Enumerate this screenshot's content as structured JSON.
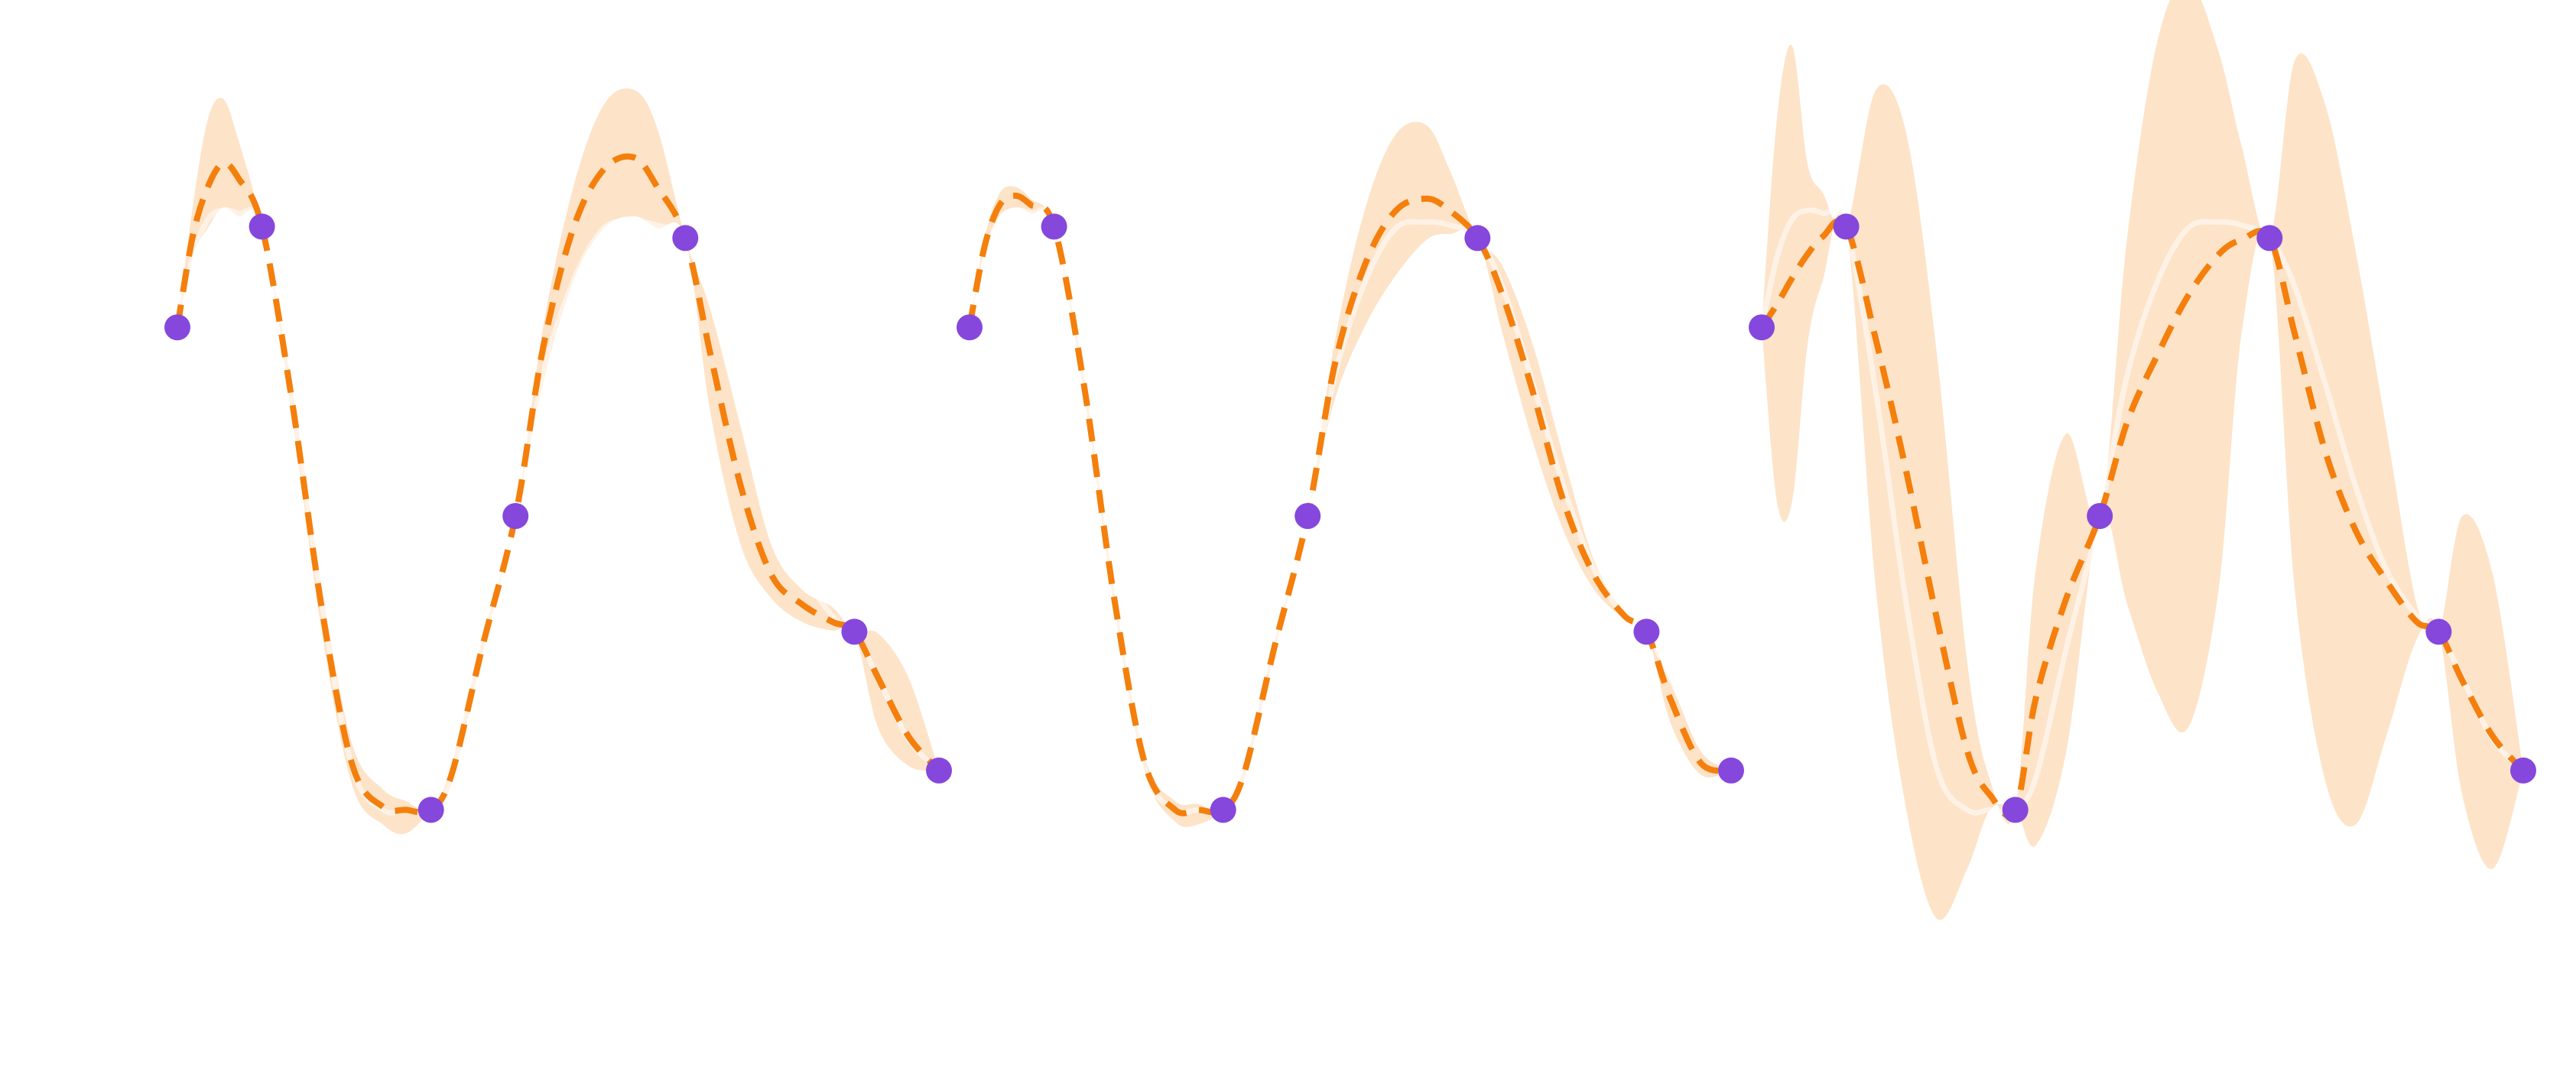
{
  "chart_data": [
    {
      "type": "line",
      "title": "",
      "xlabel": "",
      "ylabel": "",
      "xlim": [
        0,
        1
      ],
      "ylim": [
        -1.6,
        1.6
      ],
      "grid": false,
      "axes_visible": false,
      "colors": {
        "band": "#fde3c8",
        "mean": "#f47f0c",
        "truth": "#ffffff",
        "points": "#8547dc"
      },
      "observations": {
        "x": [
          0.0,
          0.111,
          0.333,
          0.444,
          0.667,
          0.889,
          1.0
        ],
        "y": [
          0.642,
          0.985,
          -1.0,
          0.0,
          0.946,
          -0.394,
          -0.866
        ]
      },
      "mean": {
        "x": [
          0.0,
          0.02,
          0.04,
          0.06,
          0.08,
          0.111,
          0.15,
          0.19,
          0.23,
          0.27,
          0.3,
          0.333,
          0.36,
          0.4,
          0.444,
          0.48,
          0.52,
          0.56,
          0.6,
          0.63,
          0.667,
          0.7,
          0.74,
          0.78,
          0.82,
          0.86,
          0.889,
          0.92,
          0.96,
          1.0
        ],
        "y": [
          0.642,
          0.95,
          1.12,
          1.2,
          1.15,
          0.985,
          0.4,
          -0.32,
          -0.85,
          -0.99,
          -1.0,
          -1.0,
          -0.88,
          -0.45,
          0.0,
          0.57,
          0.98,
          1.18,
          1.22,
          1.12,
          0.946,
          0.55,
          0.1,
          -0.2,
          -0.3,
          -0.36,
          -0.394,
          -0.55,
          -0.75,
          -0.866
        ]
      },
      "band": {
        "x": [
          0.0,
          0.02,
          0.04,
          0.06,
          0.08,
          0.111,
          0.15,
          0.19,
          0.23,
          0.27,
          0.3,
          0.333,
          0.36,
          0.4,
          0.444,
          0.48,
          0.52,
          0.56,
          0.6,
          0.63,
          0.667,
          0.7,
          0.74,
          0.78,
          0.82,
          0.86,
          0.889,
          0.92,
          0.96,
          1.0
        ],
        "upper": [
          0.642,
          1.05,
          1.35,
          1.42,
          1.28,
          0.985,
          0.45,
          -0.25,
          -0.78,
          -0.93,
          -0.97,
          -1.0,
          -0.85,
          -0.42,
          0.0,
          0.64,
          1.12,
          1.4,
          1.45,
          1.32,
          0.946,
          0.7,
          0.3,
          -0.1,
          -0.25,
          -0.31,
          -0.394,
          -0.4,
          -0.55,
          -0.866
        ],
        "lower": [
          0.642,
          0.88,
          0.98,
          1.05,
          1.02,
          0.985,
          0.35,
          -0.4,
          -0.92,
          -1.05,
          -1.08,
          -1.0,
          -0.91,
          -0.48,
          0.0,
          0.45,
          0.8,
          0.98,
          1.02,
          0.98,
          0.946,
          0.35,
          -0.1,
          -0.28,
          -0.36,
          -0.39,
          -0.394,
          -0.72,
          -0.85,
          -0.866
        ]
      },
      "truth": {
        "x": [
          0.0,
          0.02,
          0.04,
          0.06,
          0.08,
          0.111,
          0.15,
          0.19,
          0.23,
          0.27,
          0.3,
          0.333,
          0.36,
          0.4,
          0.444,
          0.48,
          0.52,
          0.56,
          0.6,
          0.63,
          0.667,
          0.7,
          0.74,
          0.78,
          0.82,
          0.86,
          0.889,
          0.92,
          0.96,
          1.0
        ],
        "y": [
          0.642,
          0.88,
          1.01,
          1.04,
          1.03,
          0.985,
          0.42,
          -0.3,
          -0.86,
          -1.0,
          -1.0,
          -1.0,
          -0.89,
          -0.45,
          0.0,
          0.48,
          0.8,
          0.98,
          1.0,
          0.99,
          0.946,
          0.78,
          0.45,
          0.1,
          -0.18,
          -0.34,
          -0.394,
          -0.55,
          -0.76,
          -0.866
        ]
      }
    },
    {
      "type": "line",
      "title": "",
      "xlabel": "",
      "ylabel": "",
      "xlim": [
        0,
        1
      ],
      "ylim": [
        -1.6,
        1.6
      ],
      "grid": false,
      "axes_visible": false,
      "colors": {
        "band": "#fde3c8",
        "mean": "#f47f0c",
        "truth": "#ffffff",
        "points": "#8547dc"
      },
      "observations": {
        "x": [
          0.0,
          0.111,
          0.333,
          0.444,
          0.667,
          0.889,
          1.0
        ],
        "y": [
          0.642,
          0.985,
          -1.0,
          0.0,
          0.946,
          -0.394,
          -0.866
        ]
      },
      "mean": {
        "x": [
          0.0,
          0.02,
          0.04,
          0.06,
          0.08,
          0.111,
          0.15,
          0.19,
          0.23,
          0.27,
          0.3,
          0.333,
          0.36,
          0.4,
          0.444,
          0.48,
          0.52,
          0.56,
          0.6,
          0.63,
          0.667,
          0.7,
          0.74,
          0.78,
          0.82,
          0.86,
          0.889,
          0.92,
          0.96,
          1.0
        ],
        "y": [
          0.642,
          0.92,
          1.06,
          1.09,
          1.06,
          0.985,
          0.45,
          -0.28,
          -0.84,
          -1.0,
          -1.0,
          -1.0,
          -0.88,
          -0.45,
          0.0,
          0.52,
          0.86,
          1.04,
          1.08,
          1.04,
          0.946,
          0.75,
          0.42,
          0.05,
          -0.2,
          -0.34,
          -0.394,
          -0.62,
          -0.84,
          -0.866
        ]
      },
      "band": {
        "x": [
          0.0,
          0.02,
          0.04,
          0.06,
          0.08,
          0.111,
          0.15,
          0.19,
          0.23,
          0.27,
          0.3,
          0.333,
          0.36,
          0.4,
          0.444,
          0.48,
          0.52,
          0.56,
          0.6,
          0.63,
          0.667,
          0.7,
          0.74,
          0.78,
          0.82,
          0.86,
          0.889,
          0.92,
          0.96,
          1.0
        ],
        "upper": [
          0.642,
          0.95,
          1.1,
          1.12,
          1.08,
          0.985,
          0.48,
          -0.25,
          -0.82,
          -0.97,
          -0.98,
          -1.0,
          -0.86,
          -0.43,
          0.0,
          0.6,
          1.05,
          1.3,
          1.33,
          1.18,
          0.946,
          0.85,
          0.58,
          0.2,
          -0.15,
          -0.33,
          -0.394,
          -0.56,
          -0.8,
          -0.866
        ],
        "lower": [
          0.642,
          0.9,
          1.02,
          1.05,
          1.03,
          0.985,
          0.42,
          -0.31,
          -0.87,
          -1.04,
          -1.05,
          -1.0,
          -0.9,
          -0.47,
          0.0,
          0.4,
          0.65,
          0.82,
          0.94,
          0.96,
          0.946,
          0.62,
          0.25,
          -0.05,
          -0.25,
          -0.35,
          -0.394,
          -0.7,
          -0.88,
          -0.866
        ]
      },
      "truth": {
        "x": [
          0.0,
          0.02,
          0.04,
          0.06,
          0.08,
          0.111,
          0.15,
          0.19,
          0.23,
          0.27,
          0.3,
          0.333,
          0.36,
          0.4,
          0.444,
          0.48,
          0.52,
          0.56,
          0.6,
          0.63,
          0.667,
          0.7,
          0.74,
          0.78,
          0.82,
          0.86,
          0.889,
          0.92,
          0.96,
          1.0
        ],
        "y": [
          0.642,
          0.88,
          1.01,
          1.04,
          1.03,
          0.985,
          0.42,
          -0.3,
          -0.86,
          -1.0,
          -1.0,
          -1.0,
          -0.89,
          -0.45,
          0.0,
          0.48,
          0.8,
          0.98,
          1.0,
          0.99,
          0.946,
          0.78,
          0.45,
          0.1,
          -0.18,
          -0.34,
          -0.394,
          -0.55,
          -0.76,
          -0.866
        ]
      }
    },
    {
      "type": "line",
      "title": "",
      "xlabel": "",
      "ylabel": "",
      "xlim": [
        0,
        1
      ],
      "ylim": [
        -1.6,
        1.6
      ],
      "grid": false,
      "axes_visible": false,
      "colors": {
        "band": "#fde3c8",
        "mean": "#f47f0c",
        "truth": "#ffffff",
        "points": "#8547dc"
      },
      "observations": {
        "x": [
          0.0,
          0.111,
          0.333,
          0.444,
          0.667,
          0.889,
          1.0
        ],
        "y": [
          0.642,
          0.985,
          -1.0,
          0.0,
          0.946,
          -0.394,
          -0.866
        ]
      },
      "mean": {
        "x": [
          0.0,
          0.02,
          0.04,
          0.06,
          0.08,
          0.111,
          0.15,
          0.19,
          0.23,
          0.27,
          0.3,
          0.333,
          0.36,
          0.4,
          0.444,
          0.48,
          0.52,
          0.56,
          0.6,
          0.63,
          0.667,
          0.7,
          0.74,
          0.78,
          0.82,
          0.86,
          0.889,
          0.92,
          0.96,
          1.0
        ],
        "y": [
          0.642,
          0.72,
          0.81,
          0.89,
          0.95,
          0.985,
          0.6,
          0.15,
          -0.35,
          -0.8,
          -0.95,
          -1.0,
          -0.62,
          -0.28,
          0.0,
          0.32,
          0.55,
          0.75,
          0.89,
          0.94,
          0.946,
          0.62,
          0.22,
          -0.05,
          -0.22,
          -0.36,
          -0.394,
          -0.56,
          -0.75,
          -0.866
        ]
      },
      "band": {
        "x": [
          0.0,
          0.02,
          0.04,
          0.06,
          0.08,
          0.111,
          0.15,
          0.19,
          0.23,
          0.27,
          0.3,
          0.333,
          0.36,
          0.4,
          0.444,
          0.48,
          0.52,
          0.56,
          0.6,
          0.63,
          0.667,
          0.7,
          0.74,
          0.78,
          0.82,
          0.86,
          0.889,
          0.92,
          0.96,
          1.0
        ],
        "upper": [
          0.642,
          1.35,
          1.6,
          1.2,
          1.1,
          0.985,
          1.45,
          1.3,
          0.55,
          -0.5,
          -0.9,
          -1.0,
          -0.18,
          0.28,
          0.0,
          0.95,
          1.62,
          1.82,
          1.58,
          1.26,
          0.946,
          1.55,
          1.4,
          0.9,
          0.3,
          -0.3,
          -0.394,
          0.0,
          -0.2,
          -0.866
        ],
        "lower": [
          0.642,
          0.05,
          0.05,
          0.58,
          0.8,
          0.985,
          -0.25,
          -1.0,
          -1.37,
          -1.2,
          -1.0,
          -1.0,
          -1.12,
          -0.8,
          0.0,
          -0.3,
          -0.6,
          -0.72,
          -0.25,
          0.62,
          0.946,
          -0.25,
          -0.9,
          -1.05,
          -0.75,
          -0.42,
          -0.394,
          -0.95,
          -1.2,
          -0.866
        ]
      },
      "truth": {
        "x": [
          0.0,
          0.02,
          0.04,
          0.06,
          0.08,
          0.111,
          0.15,
          0.19,
          0.23,
          0.27,
          0.3,
          0.333,
          0.36,
          0.4,
          0.444,
          0.48,
          0.52,
          0.56,
          0.6,
          0.63,
          0.667,
          0.7,
          0.74,
          0.78,
          0.82,
          0.86,
          0.889,
          0.92,
          0.96,
          1.0
        ],
        "y": [
          0.642,
          0.88,
          1.01,
          1.04,
          1.03,
          0.985,
          0.42,
          -0.3,
          -0.86,
          -1.0,
          -1.0,
          -1.0,
          -0.89,
          -0.45,
          0.0,
          0.48,
          0.8,
          0.98,
          1.0,
          0.99,
          0.946,
          0.78,
          0.45,
          0.1,
          -0.18,
          -0.34,
          -0.394,
          -0.55,
          -0.76,
          -0.866
        ]
      }
    }
  ]
}
